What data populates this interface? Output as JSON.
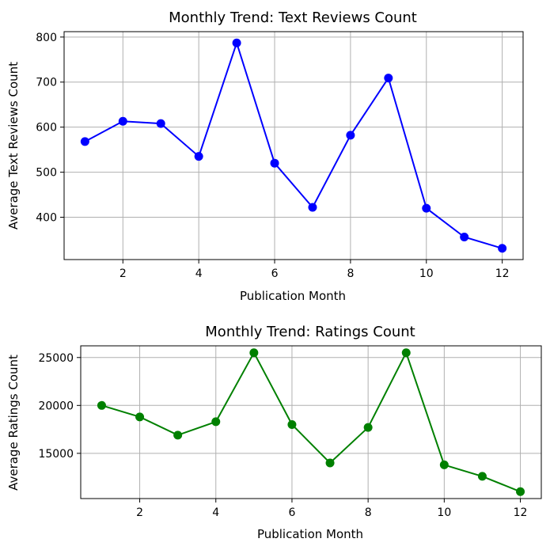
{
  "chart_data": [
    {
      "type": "line",
      "title": "Monthly Trend: Text Reviews Count",
      "xlabel": "Publication Month",
      "ylabel": "Average Text Reviews Count",
      "x": [
        1,
        2,
        3,
        4,
        5,
        6,
        7,
        8,
        9,
        10,
        11,
        12
      ],
      "series": [
        {
          "values": [
            568,
            613,
            608,
            535,
            787,
            520,
            422,
            582,
            709,
            420,
            356,
            331
          ],
          "color": "#0000ff",
          "marker": "circle"
        }
      ],
      "xlim": [
        0.45,
        12.55
      ],
      "ylim": [
        306,
        812
      ],
      "xticks": [
        2,
        4,
        6,
        8,
        10,
        12
      ],
      "yticks": [
        400,
        500,
        600,
        700,
        800
      ],
      "grid": true
    },
    {
      "type": "line",
      "title": "Monthly Trend: Ratings Count",
      "xlabel": "Publication Month",
      "ylabel": "Average Ratings Count",
      "x": [
        1,
        2,
        3,
        4,
        5,
        6,
        7,
        8,
        9,
        10,
        11,
        12
      ],
      "series": [
        {
          "values": [
            20000,
            18800,
            16900,
            18300,
            25500,
            18000,
            14000,
            17700,
            25500,
            13800,
            12600,
            11000
          ],
          "color": "#008000",
          "marker": "circle"
        }
      ],
      "xlim": [
        0.45,
        12.55
      ],
      "ylim": [
        10280,
        26220
      ],
      "xticks": [
        2,
        4,
        6,
        8,
        10,
        12
      ],
      "yticks": [
        15000,
        20000,
        25000
      ],
      "grid": true
    }
  ]
}
